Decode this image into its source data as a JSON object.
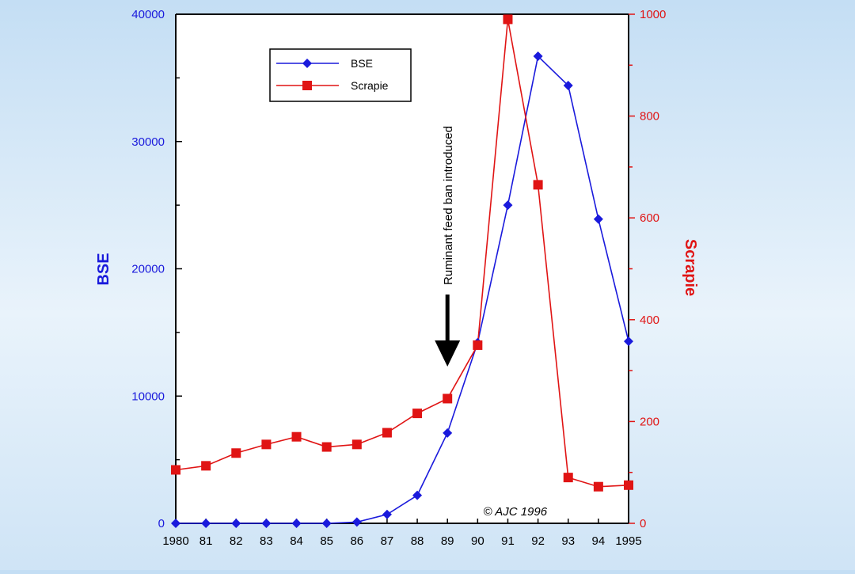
{
  "colors": {
    "bse": "#1a1adc",
    "scrapie": "#e01414",
    "axis": "#000000",
    "plot_bg": "#ffffff"
  },
  "chart_data": {
    "type": "line",
    "title": "",
    "x": [
      "1980",
      "81",
      "82",
      "83",
      "84",
      "85",
      "86",
      "87",
      "88",
      "89",
      "90",
      "91",
      "92",
      "93",
      "94",
      "1995"
    ],
    "x_values": [
      1980,
      1981,
      1982,
      1983,
      1984,
      1985,
      1986,
      1987,
      1988,
      1989,
      1990,
      1991,
      1992,
      1993,
      1994,
      1995
    ],
    "xlim": [
      1980,
      1995
    ],
    "grid": false,
    "legend_position": "top-left",
    "series": [
      {
        "name": "BSE",
        "axis": "left",
        "marker": "diamond",
        "values": [
          0,
          0,
          0,
          0,
          0,
          0,
          100,
          700,
          2200,
          7100,
          14200,
          25000,
          36700,
          34400,
          23900,
          14300
        ]
      },
      {
        "name": "Scrapie",
        "axis": "right",
        "marker": "square",
        "values": [
          105,
          113,
          138,
          155,
          170,
          150,
          155,
          178,
          216,
          245,
          350,
          990,
          665,
          90,
          72,
          75
        ]
      }
    ],
    "y_left": {
      "label": "BSE",
      "lim": [
        0,
        40000
      ],
      "ticks": [
        0,
        10000,
        20000,
        30000,
        40000
      ]
    },
    "y_right": {
      "label": "Scrapie",
      "lim": [
        0,
        1000
      ],
      "ticks": [
        0,
        200,
        400,
        600,
        800,
        1000
      ]
    },
    "annotations": [
      {
        "text": "Ruminant feed ban introduced",
        "x": 1989,
        "type": "arrow-down"
      },
      {
        "text": "© AJC 1996",
        "x": 1991.5,
        "type": "copyright"
      }
    ]
  }
}
